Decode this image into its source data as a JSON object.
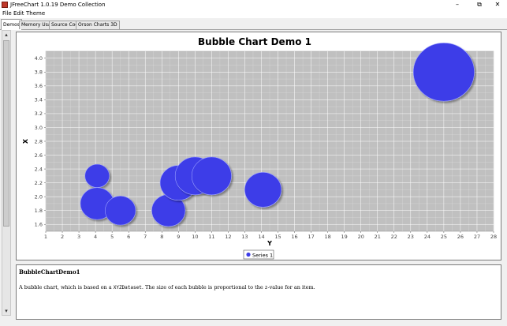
{
  "window": {
    "title": "JFreeChart 1.0.19 Demo Collection",
    "minimize_glyph": "–",
    "maximize_glyph": "⧉",
    "close_glyph": "✕"
  },
  "menu": {
    "items": [
      "File",
      "Edit",
      "Theme"
    ]
  },
  "tabs": {
    "items": [
      "Demos",
      "Memory Usage",
      "Source Code",
      "Orson Charts 3D"
    ],
    "active": "Demos"
  },
  "scrollbar": {
    "up": "▴",
    "down": "▾"
  },
  "chart_data": {
    "type": "bubble",
    "title": "Bubble Chart Demo 1",
    "xlabel": "Y",
    "ylabel": "X",
    "xlim": [
      1,
      28
    ],
    "ylim": [
      1.5,
      4.1
    ],
    "xticks": [
      1,
      2,
      3,
      4,
      5,
      6,
      7,
      8,
      9,
      10,
      11,
      12,
      13,
      14,
      15,
      16,
      17,
      18,
      19,
      20,
      21,
      22,
      23,
      24,
      25,
      26,
      27,
      28
    ],
    "yticks": [
      "1.6",
      "1.8",
      "2.0",
      "2.2",
      "2.4",
      "2.6",
      "2.8",
      "3.0",
      "3.2",
      "3.4",
      "3.6",
      "3.8",
      "4.0"
    ],
    "grid": true,
    "legend_position": "bottom",
    "series": [
      {
        "name": "Series 1",
        "color": "#3c3ce8",
        "points": [
          {
            "x": 4.1,
            "y": 2.3,
            "z": 1.6
          },
          {
            "x": 4.1,
            "y": 1.9,
            "z": 2.2
          },
          {
            "x": 5.5,
            "y": 1.8,
            "z": 2.0
          },
          {
            "x": 8.4,
            "y": 1.8,
            "z": 2.2
          },
          {
            "x": 9.0,
            "y": 2.2,
            "z": 2.4
          },
          {
            "x": 10.0,
            "y": 2.3,
            "z": 2.6
          },
          {
            "x": 11.0,
            "y": 2.3,
            "z": 2.6
          },
          {
            "x": 14.1,
            "y": 2.1,
            "z": 2.4
          },
          {
            "x": 25.0,
            "y": 3.8,
            "z": 4.0
          }
        ]
      }
    ],
    "colors": {
      "plot_bg": "#c0c0c0",
      "grid": "#ffffff"
    }
  },
  "description": {
    "title": "BubbleChartDemo1",
    "text_before": "A bubble chart, which is based on a ",
    "code1": "XYZDataset",
    "text_middle": ". The size of each bubble is proportional to the ",
    "code2": "z",
    "text_after": "-value for an item."
  }
}
